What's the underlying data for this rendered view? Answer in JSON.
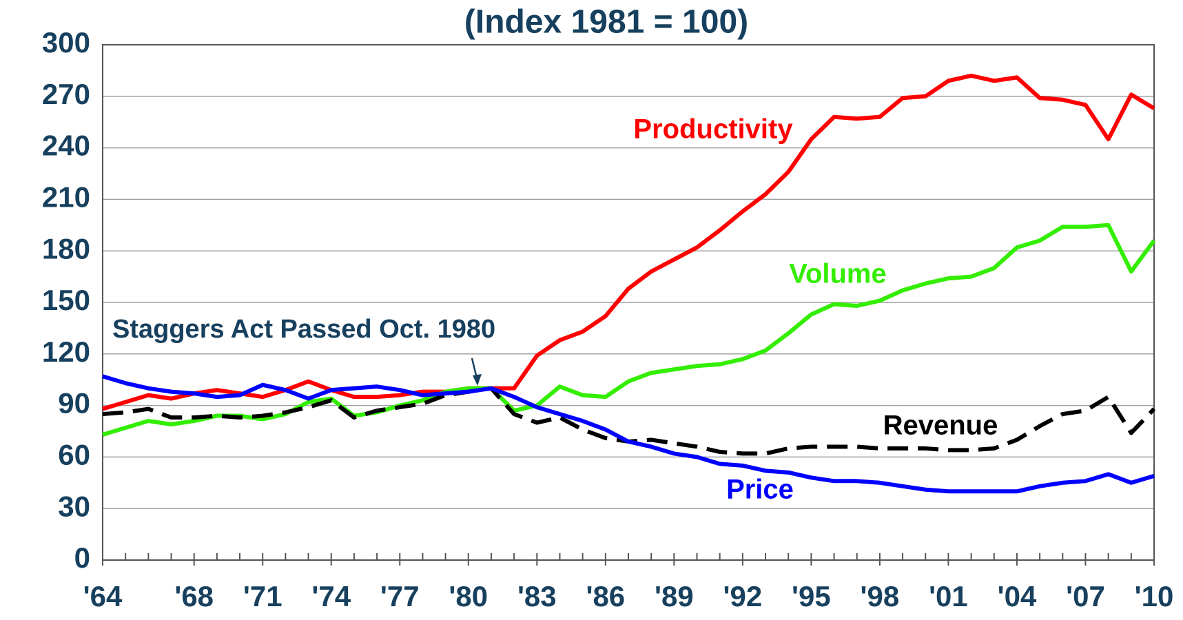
{
  "chart_data": {
    "type": "line",
    "title": "(Index 1981 = 100)",
    "annotations": [
      "Staggers Act Passed Oct. 1980"
    ],
    "x": [
      1964,
      1965,
      1966,
      1967,
      1968,
      1969,
      1970,
      1971,
      1972,
      1973,
      1974,
      1975,
      1976,
      1977,
      1978,
      1979,
      1980,
      1981,
      1982,
      1983,
      1984,
      1985,
      1986,
      1987,
      1988,
      1989,
      1990,
      1991,
      1992,
      1993,
      1994,
      1995,
      1996,
      1997,
      1998,
      1999,
      2000,
      2001,
      2002,
      2003,
      2004,
      2005,
      2006,
      2007,
      2008,
      2009,
      2010
    ],
    "xlim": [
      1964,
      2010
    ],
    "xticks": [
      {
        "value": 1964,
        "label": "'64"
      },
      {
        "value": 1968,
        "label": "'68"
      },
      {
        "value": 1971,
        "label": "'71"
      },
      {
        "value": 1974,
        "label": "'74"
      },
      {
        "value": 1977,
        "label": "'77"
      },
      {
        "value": 1980,
        "label": "'80"
      },
      {
        "value": 1983,
        "label": "'83"
      },
      {
        "value": 1986,
        "label": "'86"
      },
      {
        "value": 1989,
        "label": "'89"
      },
      {
        "value": 1992,
        "label": "'92"
      },
      {
        "value": 1995,
        "label": "'95"
      },
      {
        "value": 1998,
        "label": "'98"
      },
      {
        "value": 2001,
        "label": "'01"
      },
      {
        "value": 2004,
        "label": "'04"
      },
      {
        "value": 2007,
        "label": "'07"
      },
      {
        "value": 2010,
        "label": "'10"
      }
    ],
    "ylim": [
      0,
      300
    ],
    "yticks": [
      0,
      30,
      60,
      90,
      120,
      150,
      180,
      210,
      240,
      270,
      300
    ],
    "grid": true,
    "series": [
      {
        "name": "Productivity",
        "color": "#ff0000",
        "values": [
          88,
          92,
          96,
          94,
          97,
          99,
          97,
          95,
          99,
          104,
          99,
          95,
          95,
          96,
          98,
          98,
          100,
          100,
          100,
          119,
          128,
          133,
          142,
          158,
          168,
          175,
          182,
          192,
          203,
          213,
          226,
          245,
          258,
          257,
          258,
          269,
          270,
          279,
          282,
          279,
          281,
          269,
          268,
          265,
          245,
          271,
          263
        ]
      },
      {
        "name": "Volume",
        "color": "#33ee00",
        "values": [
          73,
          77,
          81,
          79,
          81,
          84,
          84,
          82,
          85,
          92,
          94,
          84,
          86,
          90,
          93,
          98,
          100,
          100,
          87,
          90,
          101,
          96,
          95,
          104,
          109,
          111,
          113,
          114,
          117,
          122,
          132,
          143,
          149,
          148,
          151,
          157,
          161,
          164,
          165,
          170,
          182,
          186,
          194,
          194,
          195,
          168,
          186
        ]
      },
      {
        "name": "Revenue",
        "color": "#000000",
        "dashed": true,
        "values": [
          85,
          86,
          88,
          83,
          83,
          84,
          83,
          84,
          86,
          89,
          93,
          83,
          87,
          89,
          91,
          96,
          98,
          100,
          85,
          80,
          83,
          76,
          71,
          69,
          70,
          68,
          66,
          63,
          62,
          62,
          65,
          66,
          66,
          66,
          65,
          65,
          65,
          64,
          64,
          65,
          70,
          78,
          85,
          87,
          95,
          74,
          88
        ]
      },
      {
        "name": "Price",
        "color": "#0000ff",
        "values": [
          107,
          103,
          100,
          98,
          97,
          95,
          96,
          102,
          99,
          94,
          99,
          100,
          101,
          99,
          96,
          97,
          98,
          100,
          95,
          89,
          85,
          81,
          76,
          69,
          66,
          62,
          60,
          56,
          55,
          52,
          51,
          48,
          46,
          46,
          45,
          43,
          41,
          40,
          40,
          40,
          40,
          43,
          45,
          46,
          50,
          45,
          49
        ]
      }
    ]
  }
}
